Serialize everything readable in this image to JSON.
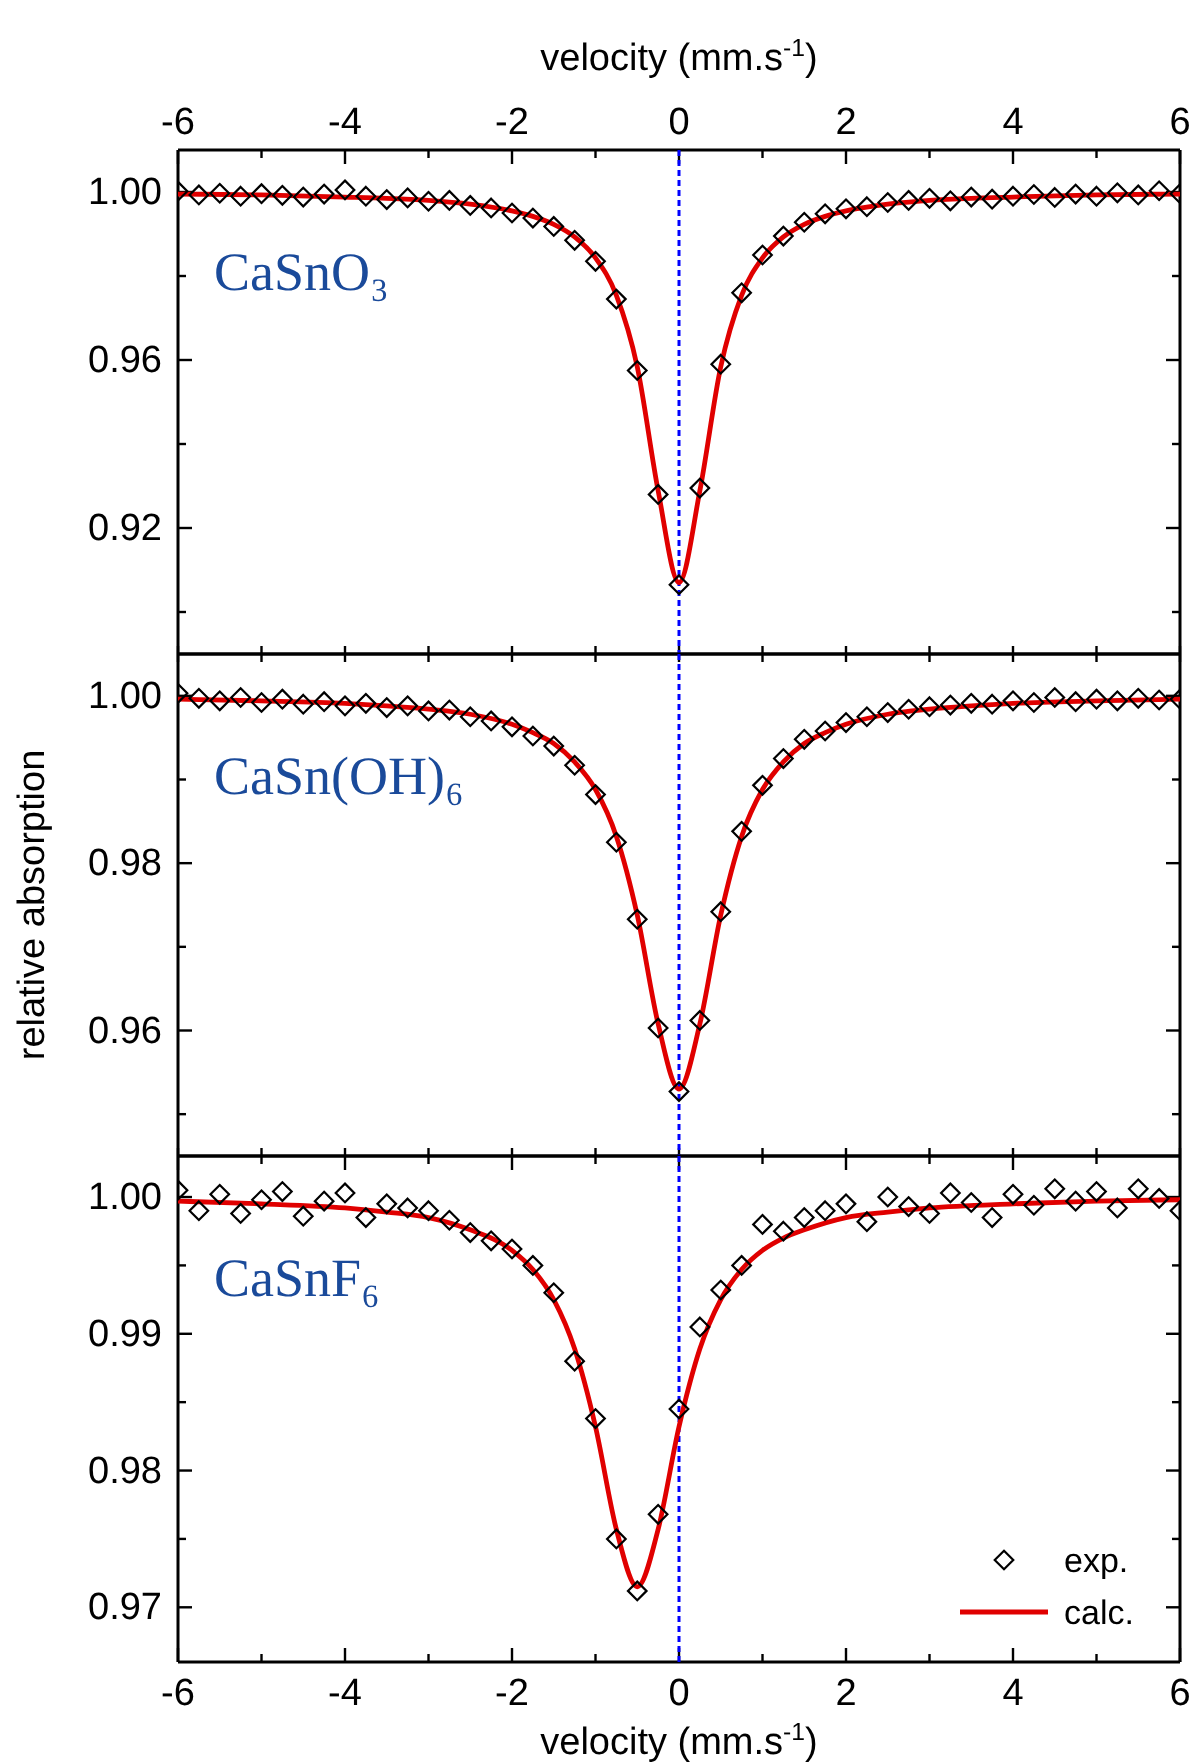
{
  "chart_data": [
    {
      "type": "scatter",
      "x2label": "velocity (mm.s$^{-1}$)",
      "tick_labels": "y",
      "marker": "diamond",
      "annotations": [
        "CaSnO₃"
      ],
      "xlim": [
        -6,
        6
      ],
      "xticks": [
        {
          "value": -6,
          "label": null
        },
        {
          "value": -5,
          "label": null
        },
        {
          "value": -4,
          "label": null
        },
        {
          "value": -3,
          "label": null
        },
        {
          "value": -2,
          "label": null
        },
        {
          "value": -1,
          "label": null
        },
        {
          "value": 0,
          "label": null
        },
        {
          "value": 1,
          "label": null
        },
        {
          "value": 2,
          "label": null
        },
        {
          "value": 3,
          "label": null
        },
        {
          "value": 4,
          "label": null
        },
        {
          "value": 5,
          "label": null
        },
        {
          "value": 6,
          "label": null
        }
      ],
      "x2lim": [
        -6,
        6
      ],
      "x2ticks": [
        -6,
        {
          "value": -5,
          "label": null
        },
        -4,
        {
          "value": -3,
          "label": null
        },
        -2,
        {
          "value": -1,
          "label": null
        },
        0,
        {
          "value": 1,
          "label": null
        },
        2,
        {
          "value": 3,
          "label": null
        },
        4,
        {
          "value": 5,
          "label": null
        },
        6
      ],
      "ylim": [
        0.89,
        1.01
      ],
      "yticks": [
        {
          "value": 0.9,
          "label": null
        },
        0.92,
        {
          "value": 0.94,
          "label": null
        },
        0.96,
        {
          "value": 0.98,
          "label": null
        },
        {
          "value": 1,
          "label": "1.00"
        }
      ],
      "ref_lines": [
        {
          "axis": "x",
          "value": 0,
          "color": "#0000ff",
          "line_style": "dashed"
        }
      ],
      "series": [
        {
          "color": "#000000",
          "x": [
            -6,
            -5.75,
            -5.5,
            -5.25,
            -5,
            -4.75,
            -4.5,
            -4.25,
            -4,
            -3.75,
            -3.5,
            -3.25,
            -3,
            -2.75,
            -2.5,
            -2.25,
            -2,
            -1.75,
            -1.5,
            -1.25,
            -1,
            -0.75,
            -0.5,
            -0.25,
            0,
            0.25,
            0.5,
            0.75,
            1,
            1.25,
            1.5,
            1.75,
            2,
            2.25,
            2.5,
            2.75,
            3,
            3.25,
            3.5,
            3.75,
            4,
            4.25,
            4.5,
            4.75,
            5,
            5.25,
            5.5,
            5.75,
            6
          ],
          "values": [
            1.0002,
            0.9993,
            0.9997,
            0.999,
            0.9996,
            0.9992,
            0.9988,
            0.9995,
            1.0005,
            0.999,
            0.9982,
            0.9986,
            0.9978,
            0.998,
            0.9968,
            0.9962,
            0.995,
            0.9938,
            0.9918,
            0.9885,
            0.9835,
            0.9745,
            0.9575,
            0.928,
            0.9065,
            0.9295,
            0.959,
            0.976,
            0.985,
            0.9895,
            0.9928,
            0.9948,
            0.996,
            0.9965,
            0.9975,
            0.998,
            0.9985,
            0.9979,
            0.9988,
            0.9983,
            0.999,
            0.9994,
            0.9987,
            0.9995,
            0.999,
            0.9998,
            0.9993,
            1.0003,
            0.9996
          ]
        },
        {
          "type": "line",
          "marker": "none",
          "color": "#e00000",
          "x": [
            -6,
            -5,
            -4,
            -3.5,
            -3,
            -2.5,
            -2,
            -1.75,
            -1.5,
            -1.25,
            -1,
            -0.75,
            -0.5,
            -0.25,
            0,
            0.25,
            0.5,
            0.75,
            1,
            1.25,
            1.5,
            1.75,
            2,
            2.5,
            3,
            3.5,
            4,
            5,
            6
          ],
          "values": [
            0.9995,
            0.9993,
            0.9988,
            0.9985,
            0.998,
            0.9971,
            0.9955,
            0.9942,
            0.9923,
            0.9893,
            0.9843,
            0.9754,
            0.9584,
            0.9289,
            0.907,
            0.9289,
            0.9584,
            0.9754,
            0.9843,
            0.9893,
            0.9923,
            0.9942,
            0.9955,
            0.9971,
            0.998,
            0.9985,
            0.9988,
            0.9993,
            0.9995
          ]
        }
      ]
    },
    {
      "type": "scatter",
      "ylabel": "relative absorption",
      "tick_labels": "y",
      "marker": "diamond",
      "annotations": [
        "CaSn(OH)₆"
      ],
      "xlim": [
        -6,
        6
      ],
      "xticks": [
        {
          "value": -6,
          "label": null
        },
        {
          "value": -5,
          "label": null
        },
        {
          "value": -4,
          "label": null
        },
        {
          "value": -3,
          "label": null
        },
        {
          "value": -2,
          "label": null
        },
        {
          "value": -1,
          "label": null
        },
        {
          "value": 0,
          "label": null
        },
        {
          "value": 1,
          "label": null
        },
        {
          "value": 2,
          "label": null
        },
        {
          "value": 3,
          "label": null
        },
        {
          "value": 4,
          "label": null
        },
        {
          "value": 5,
          "label": null
        },
        {
          "value": 6,
          "label": null
        }
      ],
      "ylim": [
        0.945,
        1.005
      ],
      "yticks": [
        {
          "value": 0.95,
          "label": null
        },
        0.96,
        {
          "value": 0.97,
          "label": null
        },
        0.98,
        {
          "value": 0.99,
          "label": null
        },
        {
          "value": 1,
          "label": "1.00"
        }
      ],
      "ref_lines": [
        {
          "axis": "x",
          "value": 0,
          "color": "#0000ff",
          "line_style": "dashed"
        }
      ],
      "series": [
        {
          "color": "#000000",
          "x": [
            -6,
            -5.75,
            -5.5,
            -5.25,
            -5,
            -4.75,
            -4.5,
            -4.25,
            -4,
            -3.75,
            -3.5,
            -3.25,
            -3,
            -2.75,
            -2.5,
            -2.25,
            -2,
            -1.75,
            -1.5,
            -1.25,
            -1,
            -0.75,
            -0.5,
            -0.25,
            0,
            0.25,
            0.5,
            0.75,
            1,
            1.25,
            1.5,
            1.75,
            2,
            2.25,
            2.5,
            2.75,
            3,
            3.25,
            3.5,
            3.75,
            4,
            4.25,
            4.5,
            4.75,
            5,
            5.25,
            5.5,
            5.75,
            6
          ],
          "values": [
            1.0003,
            0.9997,
            0.9994,
            0.9998,
            0.9992,
            0.9996,
            0.999,
            0.9993,
            0.9988,
            0.9991,
            0.9986,
            0.9988,
            0.9982,
            0.9983,
            0.9975,
            0.997,
            0.9963,
            0.9952,
            0.994,
            0.9917,
            0.9882,
            0.9825,
            0.9733,
            0.9603,
            0.9527,
            0.9612,
            0.9742,
            0.9838,
            0.9893,
            0.9925,
            0.9948,
            0.9958,
            0.9968,
            0.9975,
            0.998,
            0.9984,
            0.9987,
            0.9989,
            0.9991,
            0.999,
            0.9994,
            0.9992,
            0.9998,
            0.9993,
            0.9996,
            0.9994,
            0.9997,
            0.9995,
            0.9996
          ]
        },
        {
          "type": "line",
          "marker": "none",
          "color": "#e00000",
          "x": [
            -6,
            -5,
            -4,
            -3.5,
            -3,
            -2.5,
            -2,
            -1.75,
            -1.5,
            -1.25,
            -1,
            -0.75,
            -0.5,
            -0.25,
            0,
            0.25,
            0.5,
            0.75,
            1,
            1.25,
            1.5,
            1.75,
            2,
            2.5,
            3,
            3.5,
            4,
            5,
            6
          ],
          "values": [
            0.9996,
            0.9994,
            0.9991,
            0.9988,
            0.9984,
            0.9978,
            0.9966,
            0.9956,
            0.9943,
            0.9921,
            0.9888,
            0.9832,
            0.9738,
            0.9608,
            0.953,
            0.9608,
            0.9738,
            0.9832,
            0.9888,
            0.9921,
            0.9943,
            0.9956,
            0.9966,
            0.9978,
            0.9984,
            0.9988,
            0.9991,
            0.9994,
            0.9996
          ]
        }
      ]
    },
    {
      "type": "scatter",
      "xlabel": "velocity (mm.s$^{-1}$)",
      "marker": "diamond",
      "legend": "bottom right",
      "annotations": [
        "CaSnF₆"
      ],
      "xlim": [
        -6,
        6
      ],
      "xticks": [
        -6,
        {
          "value": -5,
          "label": null
        },
        -4,
        {
          "value": -3,
          "label": null
        },
        -2,
        {
          "value": -1,
          "label": null
        },
        0,
        {
          "value": 1,
          "label": null
        },
        2,
        {
          "value": 3,
          "label": null
        },
        4,
        {
          "value": 5,
          "label": null
        },
        6
      ],
      "ylim": [
        0.966,
        1.003
      ],
      "yticks": [
        0.97,
        {
          "value": 0.975,
          "label": null
        },
        0.98,
        {
          "value": 0.985,
          "label": null
        },
        0.99,
        {
          "value": 0.995,
          "label": null
        },
        {
          "value": 1,
          "label": "1.00"
        }
      ],
      "ref_lines": [
        {
          "axis": "x",
          "value": 0,
          "color": "#0000ff",
          "line_style": "dashed"
        }
      ],
      "series": [
        {
          "name": "exp.",
          "color": "#000000",
          "x": [
            -6,
            -5.75,
            -5.5,
            -5.25,
            -5,
            -4.75,
            -4.5,
            -4.25,
            -4,
            -3.75,
            -3.5,
            -3.25,
            -3,
            -2.75,
            -2.5,
            -2.25,
            -2,
            -1.75,
            -1.5,
            -1.25,
            -1,
            -0.75,
            -0.5,
            -0.25,
            0,
            0.25,
            0.5,
            0.75,
            1,
            1.25,
            1.5,
            1.75,
            2,
            2.25,
            2.5,
            2.75,
            3,
            3.25,
            3.5,
            3.75,
            4,
            4.25,
            4.5,
            4.75,
            5,
            5.25,
            5.5,
            5.75,
            6
          ],
          "values": [
            1.0005,
            0.999,
            1.0002,
            0.9988,
            0.9998,
            1.0004,
            0.9986,
            0.9997,
            1.0003,
            0.9985,
            0.9995,
            0.9992,
            0.999,
            0.9983,
            0.9974,
            0.9968,
            0.9962,
            0.995,
            0.993,
            0.988,
            0.9838,
            0.975,
            0.9712,
            0.9768,
            0.9845,
            0.9905,
            0.9932,
            0.995,
            0.998,
            0.9975,
            0.9985,
            0.999,
            0.9995,
            0.9982,
            1.0,
            0.9993,
            0.9988,
            1.0003,
            0.9996,
            0.9985,
            1.0002,
            0.9994,
            1.0006,
            0.9997,
            1.0004,
            0.9992,
            1.0006,
            0.9999,
            0.999
          ]
        },
        {
          "type": "line",
          "marker": "none",
          "name": "calc.",
          "color": "#e00000",
          "x": [
            -6,
            -5,
            -4,
            -3.5,
            -3,
            -2.5,
            -2,
            -1.75,
            -1.5,
            -1.25,
            -1,
            -0.75,
            -0.5,
            -0.25,
            0,
            0.25,
            0.5,
            0.75,
            1,
            1.25,
            1.5,
            2,
            2.5,
            3,
            4,
            5,
            6
          ],
          "values": [
            0.9997,
            0.9995,
            0.9992,
            0.9989,
            0.9985,
            0.9976,
            0.9961,
            0.9947,
            0.9925,
            0.9889,
            0.9832,
            0.9757,
            0.9715,
            0.9757,
            0.9832,
            0.9889,
            0.9925,
            0.9947,
            0.9961,
            0.997,
            0.9976,
            0.9985,
            0.9989,
            0.9992,
            0.9995,
            0.9997,
            0.9998
          ]
        }
      ]
    }
  ]
}
